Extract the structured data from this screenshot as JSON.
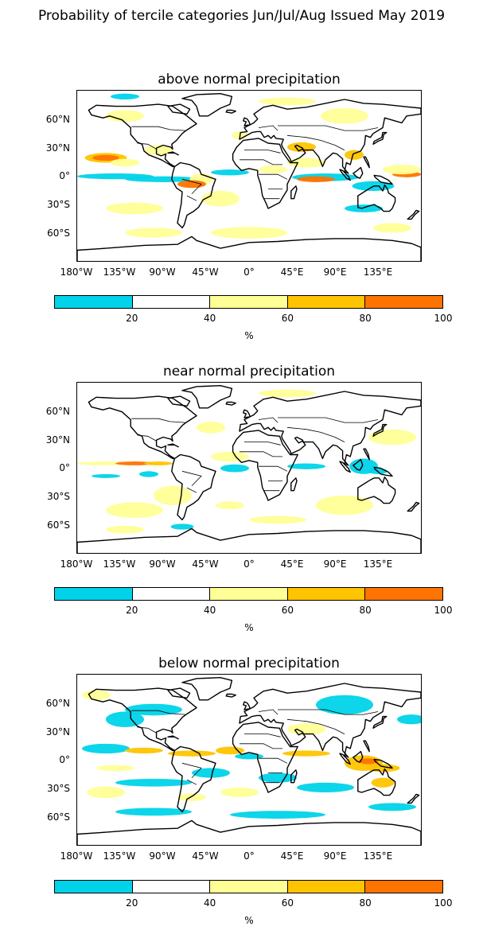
{
  "title": "Probability of tercile categories Jun/Jul/Aug Issued May 2019",
  "panels": [
    {
      "title": "above normal precipitation"
    },
    {
      "title": "near normal precipitation"
    },
    {
      "title": "below normal precipitation"
    }
  ],
  "lat_labels": [
    "60°N",
    "30°N",
    "0°",
    "30°S",
    "60°S"
  ],
  "lon_labels": [
    "180°W",
    "135°W",
    "90°W",
    "45°W",
    "0°",
    "45°E",
    "90°E",
    "135°E"
  ],
  "colorbar": {
    "ticks": [
      "20",
      "40",
      "60",
      "80",
      "100"
    ],
    "unit": "%",
    "colors": [
      "#00d3e9",
      "#ffffff",
      "#ffff96",
      "#ffc400",
      "#ff7300"
    ],
    "range": [
      0,
      100
    ]
  },
  "colors": {
    "cyan": "#00d3e9",
    "light_yellow": "#ffff96",
    "yellow": "#ffc400",
    "orange": "#ff7300"
  }
}
